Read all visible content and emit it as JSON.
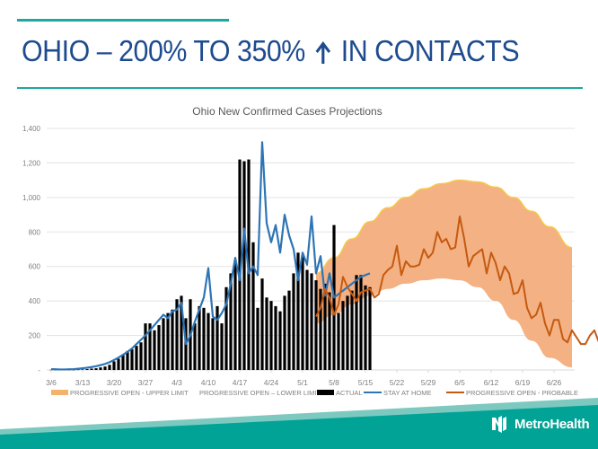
{
  "slide": {
    "title_before_icon": "OHIO – 200% TO 350%",
    "title_icon": "up-arrow-icon",
    "title_after_icon": "IN CONTACTS",
    "brand_name": "MetroHealth",
    "colors": {
      "accent": "#1fa89c",
      "title": "#1e4b8f",
      "footer": "#00a396",
      "footer_light": "#7dc9c0"
    }
  },
  "chart_data": {
    "type": "bar",
    "title": "Ohio New Confirmed Cases Projections",
    "xlabel": "",
    "ylabel": "",
    "ylim": [
      0,
      1400
    ],
    "yticks": [
      0,
      200,
      400,
      600,
      800,
      1000,
      1200,
      1400
    ],
    "ytick_labels": [
      "-",
      "200",
      "400",
      "600",
      "800",
      "1,000",
      "1,200",
      "1,400"
    ],
    "x_start": "3/6",
    "x_end": "6/30",
    "xtick_labels": [
      "3/6",
      "3/13",
      "3/20",
      "3/27",
      "4/3",
      "4/10",
      "4/17",
      "4/24",
      "5/1",
      "5/8",
      "5/15",
      "5/22",
      "5/29",
      "6/5",
      "6/12",
      "6/19",
      "6/26"
    ],
    "xtick_day_offsets": [
      0,
      7,
      14,
      21,
      28,
      35,
      42,
      49,
      56,
      63,
      70,
      77,
      84,
      91,
      98,
      105,
      112
    ],
    "grid": true,
    "legend_position": "bottom",
    "legend": [
      {
        "label": "PROGRESSIVE OPEN - UPPER LIMIT",
        "kind": "area",
        "color": "#f4b36a"
      },
      {
        "label": "PROGRESSIVE OPEN – LOWER LIMIT",
        "kind": "none",
        "color": "#ffffff"
      },
      {
        "label": "ACTUAL",
        "kind": "bar",
        "color": "#000000"
      },
      {
        "label": "STAY AT HOME",
        "kind": "line",
        "color": "#2e75b6"
      },
      {
        "label": "PROGRESSIVE OPEN - PROBABLE",
        "kind": "line",
        "color": "#c55a11"
      }
    ],
    "series": [
      {
        "name": "ACTUAL",
        "type": "bar",
        "start_day": 0,
        "values": [
          1,
          1,
          1,
          1,
          1,
          1,
          2,
          3,
          5,
          8,
          10,
          15,
          20,
          30,
          50,
          65,
          90,
          110,
          120,
          140,
          160,
          270,
          270,
          230,
          260,
          300,
          330,
          350,
          410,
          430,
          300,
          410,
          270,
          370,
          360,
          330,
          300,
          370,
          270,
          480,
          560,
          620,
          1220,
          1210,
          1220,
          740,
          360,
          530,
          420,
          400,
          370,
          340,
          430,
          460,
          560,
          680,
          660,
          580,
          560,
          520,
          470,
          500,
          450,
          840,
          330,
          400,
          430,
          460,
          550,
          550,
          490,
          480
        ]
      },
      {
        "name": "STAY AT HOME",
        "type": "line",
        "start_day": 0,
        "values": [
          5,
          4,
          3,
          3,
          4,
          5,
          7,
          10,
          13,
          17,
          22,
          28,
          35,
          45,
          58,
          72,
          88,
          105,
          125,
          150,
          175,
          200,
          230,
          260,
          290,
          320,
          300,
          340,
          350,
          390,
          150,
          200,
          280,
          350,
          420,
          590,
          310,
          290,
          330,
          380,
          500,
          650,
          520,
          820,
          560,
          600,
          550,
          1320,
          850,
          740,
          840,
          680,
          900,
          780,
          700,
          520,
          680,
          610,
          890,
          560,
          660,
          430,
          560,
          420,
          440,
          460,
          480,
          500,
          520,
          540,
          550,
          560
        ]
      },
      {
        "name": "PROGRESSIVE OPEN - PROBABLE",
        "type": "line",
        "start_day": 59,
        "values": [
          310,
          360,
          470,
          420,
          320,
          380,
          540,
          480,
          440,
          400,
          450,
          460,
          470,
          420,
          440,
          550,
          580,
          600,
          720,
          550,
          630,
          600,
          600,
          610,
          700,
          650,
          680,
          800,
          740,
          760,
          700,
          710,
          890,
          760,
          600,
          660,
          680,
          700,
          560,
          680,
          620,
          520,
          600,
          560,
          440,
          450,
          520,
          360,
          300,
          320,
          390,
          270,
          200,
          290,
          290,
          180,
          160,
          230,
          190,
          150,
          150,
          200,
          230,
          160,
          210,
          250,
          150
        ]
      },
      {
        "name": "PROGRESSIVE OPEN - UPPER LIMIT",
        "type": "area-upper",
        "start_day": 59,
        "end_day": 116,
        "points": [
          [
            59,
            560
          ],
          [
            63,
            650
          ],
          [
            67,
            760
          ],
          [
            71,
            860
          ],
          [
            75,
            940
          ],
          [
            79,
            1000
          ],
          [
            83,
            1050
          ],
          [
            87,
            1080
          ],
          [
            91,
            1100
          ],
          [
            95,
            1090
          ],
          [
            99,
            1060
          ],
          [
            103,
            1000
          ],
          [
            107,
            920
          ],
          [
            111,
            830
          ],
          [
            116,
            710
          ]
        ]
      },
      {
        "name": "PROGRESSIVE OPEN – LOWER LIMIT",
        "type": "area-lower",
        "start_day": 59,
        "end_day": 116,
        "points": [
          [
            59,
            270
          ],
          [
            63,
            320
          ],
          [
            67,
            380
          ],
          [
            71,
            430
          ],
          [
            75,
            470
          ],
          [
            79,
            500
          ],
          [
            83,
            520
          ],
          [
            87,
            530
          ],
          [
            91,
            520
          ],
          [
            95,
            480
          ],
          [
            99,
            400
          ],
          [
            103,
            290
          ],
          [
            107,
            170
          ],
          [
            111,
            70
          ],
          [
            116,
            15
          ]
        ]
      }
    ]
  }
}
